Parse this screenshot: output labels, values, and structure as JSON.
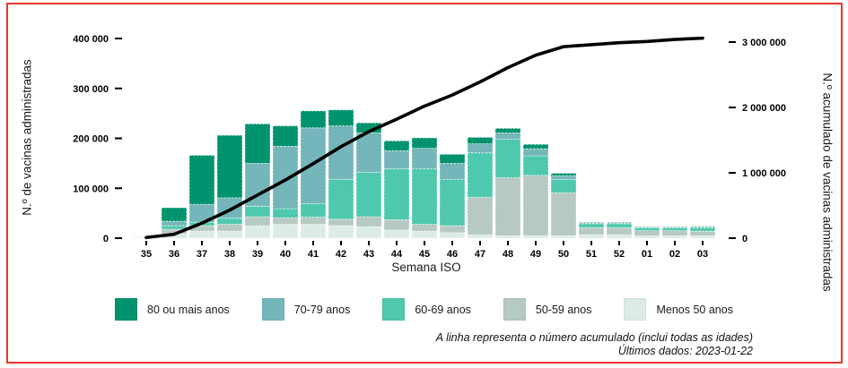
{
  "frame": {
    "border_color": "#e8352b",
    "background": "#ffffff"
  },
  "left_axis": {
    "title": "N.º de vacinas administradas",
    "ticks": [
      "400 000",
      "300 000",
      "200 000",
      "100 000",
      "0"
    ],
    "tick_values": [
      400000,
      300000,
      200000,
      100000,
      0
    ]
  },
  "right_axis": {
    "title": "N.º acumulado de vacinas administradas",
    "ticks": [
      "3 000 000",
      "2 000 000",
      "1 000 000",
      "0"
    ],
    "tick_values": [
      3000000,
      2000000,
      1000000,
      0
    ]
  },
  "x_axis": {
    "title": "Semana ISO"
  },
  "legend": [
    {
      "label": "80 ou mais anos",
      "color": "#00936e"
    },
    {
      "label": "70-79 anos",
      "color": "#74b6ba"
    },
    {
      "label": "60-69 anos",
      "color": "#4ec9ae"
    },
    {
      "label": "50-59 anos",
      "color": "#b6c9c3"
    },
    {
      "label": "Menos 50 anos",
      "color": "#dcebe6"
    }
  ],
  "footnote": {
    "line1": "A linha representa o número acumulado (inclui todas as idades)",
    "line2": "Últimos dados: 2023-01-22"
  },
  "chart_data": {
    "type": "bar",
    "subtype": "stacked-bars-with-cumulative-line",
    "xlabel": "Semana ISO",
    "ylabel_left": "N.º de vacinas administradas",
    "ylabel_right": "N.º acumulado de vacinas administradas",
    "ylim_left": [
      0,
      400000
    ],
    "ylim_right": [
      0,
      3000000
    ],
    "grid": false,
    "legend_position": "bottom",
    "stacking_order_bottom_to_top": [
      "Menos 50 anos",
      "50-59 anos",
      "60-69 anos",
      "70-79 anos",
      "80 ou mais anos"
    ],
    "categories": [
      "35",
      "36",
      "37",
      "38",
      "39",
      "40",
      "41",
      "42",
      "43",
      "44",
      "45",
      "46",
      "47",
      "48",
      "49",
      "50",
      "51",
      "52",
      "01",
      "02",
      "03"
    ],
    "series": [
      {
        "key": "80-ou-mais",
        "name": "80 ou mais anos",
        "values": [
          500,
          27000,
          98000,
          125000,
          79000,
          41000,
          34000,
          32000,
          20000,
          20000,
          21000,
          18000,
          13000,
          9000,
          9000,
          5000,
          1000,
          1000,
          1000,
          1000,
          1000
        ]
      },
      {
        "key": "70-79",
        "name": "70-79 anos",
        "values": [
          500,
          9000,
          36000,
          41000,
          86000,
          125000,
          152000,
          107000,
          79000,
          36000,
          41000,
          32000,
          18000,
          13000,
          14000,
          7000,
          2000,
          2000,
          1000,
          1000,
          2000
        ]
      },
      {
        "key": "60-69",
        "name": "60-69 anos",
        "values": [
          500,
          7000,
          7000,
          12000,
          21000,
          18000,
          27000,
          80000,
          89000,
          102000,
          111000,
          93000,
          89000,
          77000,
          39000,
          27000,
          8000,
          8000,
          6000,
          6000,
          7000
        ]
      },
      {
        "key": "50-59",
        "name": "50-59 anos",
        "values": [
          500,
          9000,
          11000,
          14000,
          18000,
          13000,
          14000,
          13000,
          20000,
          21000,
          14000,
          14000,
          75000,
          116000,
          121000,
          86000,
          14000,
          14000,
          10000,
          10000,
          9000
        ]
      },
      {
        "key": "menos-50",
        "name": "Menos 50 anos",
        "values": [
          500,
          9000,
          14000,
          14000,
          25000,
          28000,
          28000,
          25000,
          23000,
          16000,
          14000,
          11000,
          7000,
          5000,
          5000,
          5000,
          7000,
          7000,
          5000,
          5000,
          5000
        ]
      }
    ],
    "line": {
      "name": "acumulado (todas as idades)",
      "color": "#000000",
      "axis": "right",
      "values": [
        10000,
        60000,
        230000,
        430000,
        660000,
        890000,
        1140000,
        1400000,
        1630000,
        1820000,
        2020000,
        2190000,
        2390000,
        2610000,
        2800000,
        2930000,
        2960000,
        2990000,
        3010000,
        3040000,
        3060000
      ]
    }
  }
}
